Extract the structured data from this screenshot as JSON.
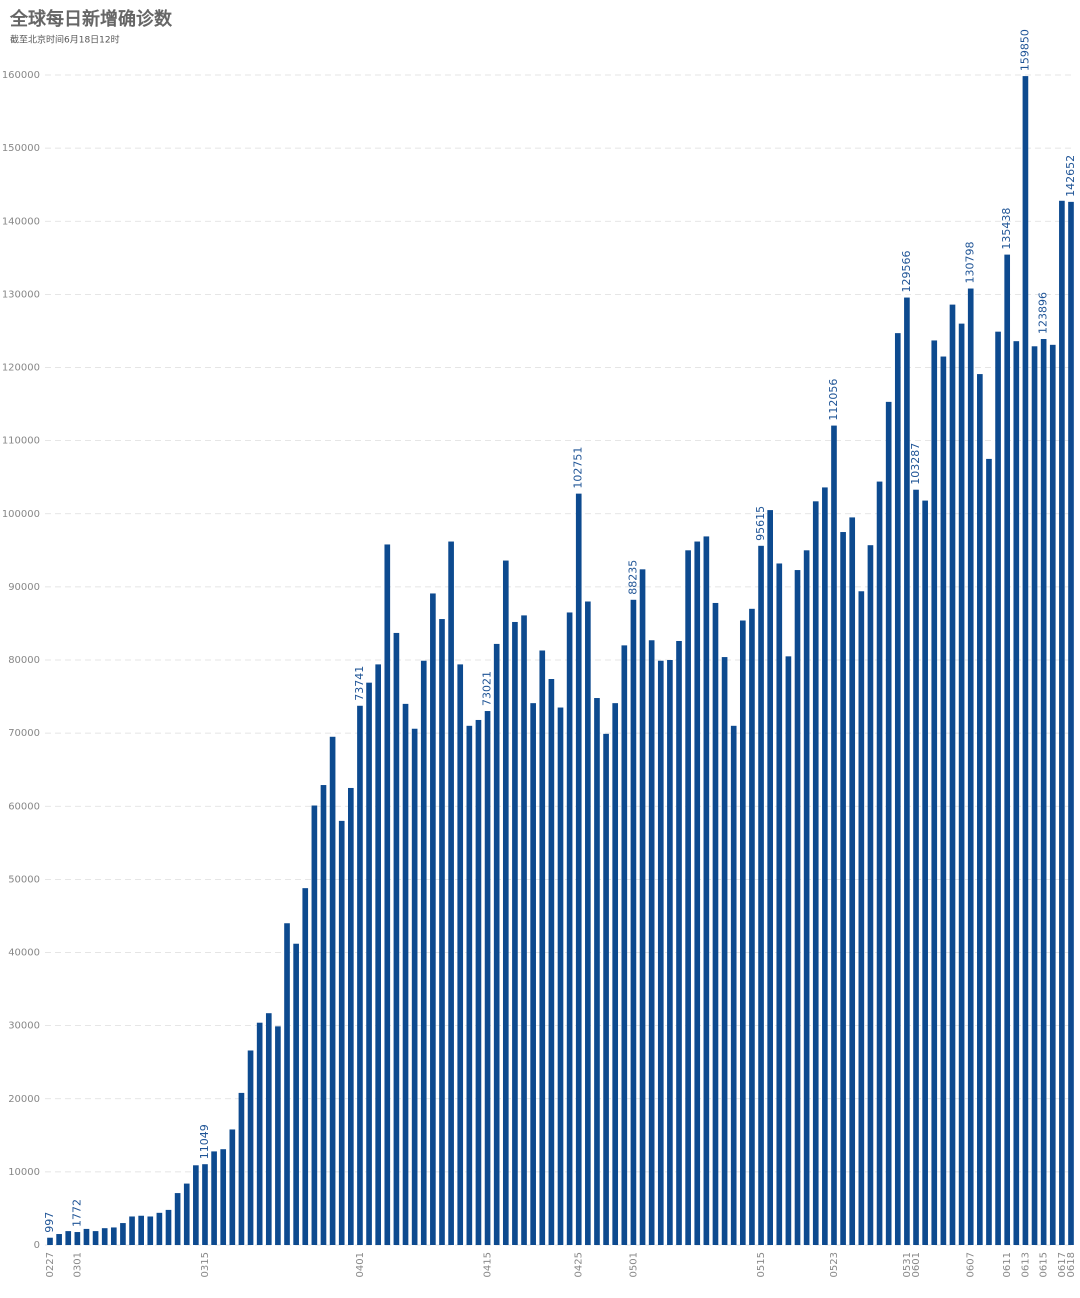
{
  "chart_data": {
    "type": "bar",
    "title": "全球每日新增确诊数",
    "subtitle": "截至北京时间6月18日12时",
    "color": "#0d4a8f",
    "grid": true,
    "ylim": [
      0,
      160000
    ],
    "yticks": [
      0,
      10000,
      20000,
      30000,
      40000,
      50000,
      60000,
      70000,
      80000,
      90000,
      100000,
      110000,
      120000,
      130000,
      140000,
      150000,
      160000
    ],
    "categories": [
      "0227",
      null,
      null,
      "0301",
      null,
      null,
      null,
      null,
      null,
      null,
      null,
      null,
      null,
      null,
      null,
      null,
      null,
      "0315",
      null,
      null,
      null,
      null,
      null,
      null,
      null,
      null,
      null,
      null,
      null,
      null,
      null,
      null,
      null,
      null,
      "0401",
      null,
      null,
      null,
      null,
      null,
      null,
      null,
      null,
      null,
      null,
      null,
      null,
      null,
      "0415",
      null,
      null,
      null,
      null,
      null,
      null,
      null,
      null,
      null,
      "0425",
      null,
      null,
      null,
      null,
      null,
      "0501",
      null,
      null,
      null,
      null,
      null,
      null,
      null,
      null,
      null,
      null,
      null,
      null,
      null,
      "0515",
      null,
      null,
      null,
      null,
      null,
      null,
      null,
      "0523",
      null,
      null,
      null,
      null,
      null,
      null,
      null,
      "0531",
      "0601",
      null,
      null,
      null,
      null,
      null,
      "0607",
      null,
      null,
      null,
      "0611",
      null,
      "0613",
      null,
      "0615",
      null,
      "0617",
      "0618"
    ],
    "values": [
      997,
      1500,
      1900,
      1772,
      2200,
      1900,
      2300,
      2400,
      3000,
      3900,
      4000,
      3900,
      4400,
      4800,
      7100,
      8400,
      10900,
      11049,
      12800,
      13100,
      15800,
      20800,
      26600,
      30400,
      31700,
      29900,
      44000,
      41200,
      48800,
      60100,
      62900,
      69500,
      58000,
      62500,
      73741,
      76900,
      79400,
      95800,
      83700,
      74000,
      70600,
      79900,
      89100,
      85600,
      96200,
      79400,
      71000,
      71800,
      73021,
      82200,
      93600,
      85200,
      86100,
      74100,
      81300,
      77400,
      73500,
      86500,
      102751,
      88000,
      74800,
      69900,
      74100,
      82000,
      88235,
      92400,
      82700,
      79900,
      80000,
      82600,
      95000,
      96200,
      96900,
      87800,
      80400,
      71000,
      85400,
      87000,
      95615,
      100500,
      93200,
      80500,
      92300,
      95000,
      101700,
      103600,
      112056,
      97500,
      99500,
      89400,
      95700,
      104400,
      115300,
      124700,
      129566,
      103287,
      101800,
      123700,
      121500,
      128600,
      126000,
      130798,
      119100,
      107500,
      124900,
      135438,
      123600,
      159850,
      122900,
      123896,
      123100,
      142800,
      142652
    ],
    "value_labels": [
      "997",
      null,
      null,
      "1772",
      null,
      null,
      null,
      null,
      null,
      null,
      null,
      null,
      null,
      null,
      null,
      null,
      null,
      "11049",
      null,
      null,
      null,
      null,
      null,
      null,
      null,
      null,
      null,
      null,
      null,
      null,
      null,
      null,
      null,
      null,
      "73741",
      null,
      null,
      null,
      null,
      null,
      null,
      null,
      null,
      null,
      null,
      null,
      null,
      null,
      "73021",
      null,
      null,
      null,
      null,
      null,
      null,
      null,
      null,
      null,
      "102751",
      null,
      null,
      null,
      null,
      null,
      "88235",
      null,
      null,
      null,
      null,
      null,
      null,
      null,
      null,
      null,
      null,
      null,
      null,
      null,
      "95615",
      null,
      null,
      null,
      null,
      null,
      null,
      null,
      "112056",
      null,
      null,
      null,
      null,
      null,
      null,
      null,
      "129566",
      "103287",
      null,
      null,
      null,
      null,
      null,
      "130798",
      null,
      null,
      null,
      "135438",
      null,
      "159850",
      null,
      "123896",
      null,
      null,
      "142652"
    ]
  }
}
